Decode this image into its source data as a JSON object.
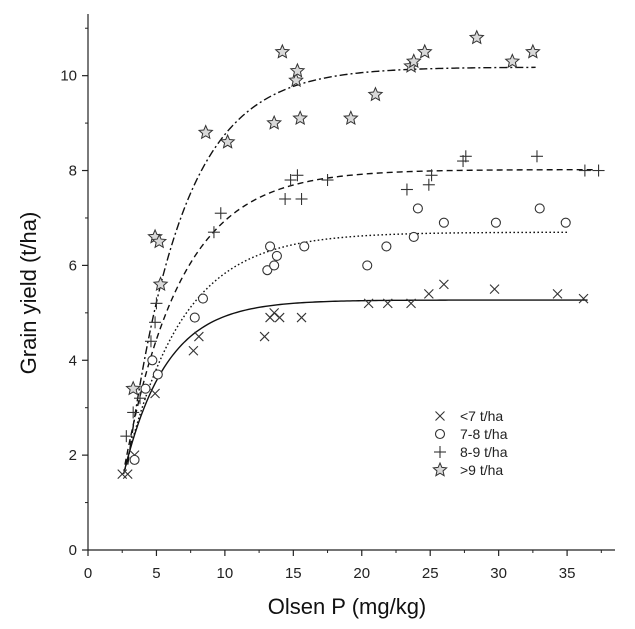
{
  "chart_data": {
    "type": "scatter",
    "xlabel": "Olsen P (mg/kg)",
    "ylabel": "Grain yield (t/ha)",
    "xlim": [
      0,
      38.5
    ],
    "ylim": [
      0,
      11.3
    ],
    "xticks": [
      0,
      5,
      10,
      15,
      20,
      25,
      30,
      35
    ],
    "yticks": [
      0,
      2,
      4,
      6,
      8,
      10
    ],
    "grid": false,
    "legend_position": "bottom-right",
    "series": [
      {
        "name": "<7 t/ha",
        "marker": "x",
        "curve_style": "solid",
        "curve": {
          "plateau": 5.27,
          "k": 0.32,
          "x0": 2.6,
          "y0": 1.6,
          "xmax": 36.5
        },
        "points": [
          [
            2.5,
            1.6
          ],
          [
            2.9,
            1.6
          ],
          [
            3.4,
            2.0
          ],
          [
            4.9,
            3.3
          ],
          [
            7.7,
            4.2
          ],
          [
            8.1,
            4.5
          ],
          [
            12.9,
            4.5
          ],
          [
            13.3,
            4.9
          ],
          [
            13.6,
            5.0
          ],
          [
            14.0,
            4.9
          ],
          [
            15.6,
            4.9
          ],
          [
            20.5,
            5.2
          ],
          [
            21.9,
            5.2
          ],
          [
            23.6,
            5.2
          ],
          [
            24.9,
            5.4
          ],
          [
            26.0,
            5.6
          ],
          [
            29.7,
            5.5
          ],
          [
            34.3,
            5.4
          ],
          [
            36.2,
            5.3
          ]
        ]
      },
      {
        "name": "7-8 t/ha",
        "marker": "circle",
        "curve_style": "dotted",
        "curve": {
          "plateau": 6.7,
          "k": 0.24,
          "x0": 2.7,
          "y0": 1.7,
          "xmax": 35.0
        },
        "points": [
          [
            3.4,
            1.9
          ],
          [
            4.2,
            3.4
          ],
          [
            4.7,
            4.0
          ],
          [
            5.1,
            3.7
          ],
          [
            7.8,
            4.9
          ],
          [
            8.4,
            5.3
          ],
          [
            13.1,
            5.9
          ],
          [
            13.3,
            6.4
          ],
          [
            13.6,
            6.0
          ],
          [
            13.8,
            6.2
          ],
          [
            15.8,
            6.4
          ],
          [
            20.4,
            6.0
          ],
          [
            21.8,
            6.4
          ],
          [
            23.8,
            6.6
          ],
          [
            24.1,
            7.2
          ],
          [
            26.0,
            6.9
          ],
          [
            29.8,
            6.9
          ],
          [
            33.0,
            7.2
          ],
          [
            34.9,
            6.9
          ]
        ]
      },
      {
        "name": "8-9 t/ha",
        "marker": "plus",
        "curve_style": "dashed",
        "curve": {
          "plateau": 8.02,
          "k": 0.24,
          "x0": 2.7,
          "y0": 1.8,
          "xmax": 37.0
        },
        "points": [
          [
            2.8,
            2.4
          ],
          [
            3.3,
            2.9
          ],
          [
            3.8,
            3.2
          ],
          [
            4.6,
            4.4
          ],
          [
            4.9,
            4.8
          ],
          [
            5.0,
            5.2
          ],
          [
            9.2,
            6.7
          ],
          [
            9.7,
            7.1
          ],
          [
            14.4,
            7.4
          ],
          [
            14.8,
            7.8
          ],
          [
            15.3,
            7.9
          ],
          [
            15.6,
            7.4
          ],
          [
            17.5,
            7.8
          ],
          [
            23.3,
            7.6
          ],
          [
            24.9,
            7.7
          ],
          [
            25.1,
            7.9
          ],
          [
            27.4,
            8.2
          ],
          [
            27.6,
            8.3
          ],
          [
            32.8,
            8.3
          ],
          [
            36.3,
            8.0
          ],
          [
            37.3,
            8.0
          ]
        ]
      },
      {
        "name": ">9 t/ha",
        "marker": "star",
        "curve_style": "dashdot",
        "curve": {
          "plateau": 10.18,
          "k": 0.25,
          "x0": 2.9,
          "y0": 1.8,
          "xmax": 32.7
        },
        "points": [
          [
            3.3,
            3.4
          ],
          [
            4.9,
            6.6
          ],
          [
            5.2,
            6.5
          ],
          [
            5.3,
            5.6
          ],
          [
            8.6,
            8.8
          ],
          [
            10.2,
            8.6
          ],
          [
            13.6,
            9.0
          ],
          [
            14.2,
            10.5
          ],
          [
            15.2,
            9.9
          ],
          [
            15.3,
            10.1
          ],
          [
            15.5,
            9.1
          ],
          [
            19.2,
            9.1
          ],
          [
            21.0,
            9.6
          ],
          [
            23.6,
            10.2
          ],
          [
            23.8,
            10.3
          ],
          [
            24.6,
            10.5
          ],
          [
            28.4,
            10.8
          ],
          [
            31.0,
            10.3
          ],
          [
            32.5,
            10.5
          ]
        ]
      }
    ]
  }
}
